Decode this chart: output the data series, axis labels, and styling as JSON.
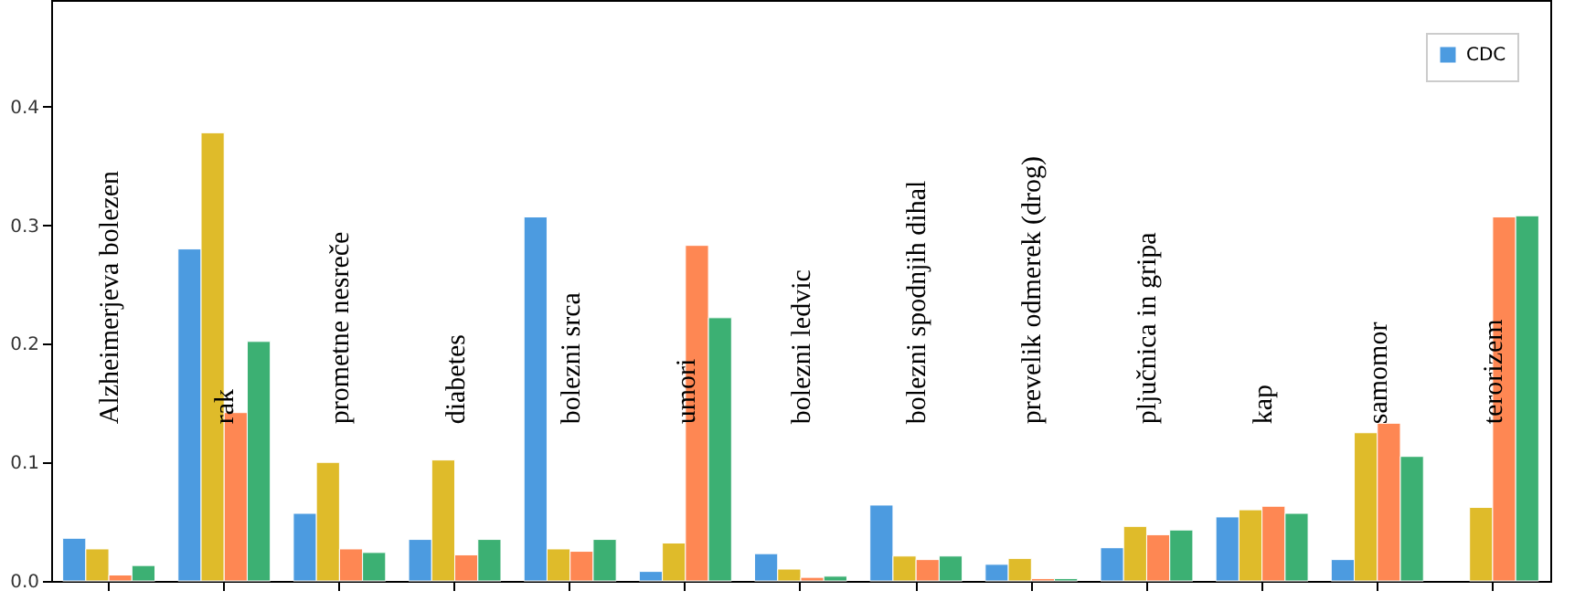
{
  "chart_data": {
    "type": "bar",
    "categories": [
      "Alzheimerjeva bolezen",
      "rak",
      "prometne nesreče",
      "diabetes",
      "bolezni srca",
      "umori",
      "bolezni ledvic",
      "bolezni spodnjih dihal",
      "prevelik odmerek (drog)",
      "pljučnica in gripa",
      "kap",
      "samomor",
      "terorizem"
    ],
    "series": [
      {
        "name": "CDC",
        "color": "#4c9be0",
        "values": [
          0.036,
          0.28,
          0.057,
          0.035,
          0.307,
          0.008,
          0.023,
          0.064,
          0.014,
          0.028,
          0.054,
          0.018,
          null
        ]
      },
      {
        "name": null,
        "color": "#dfbb2a",
        "values": [
          0.027,
          0.378,
          0.1,
          0.102,
          0.027,
          0.032,
          0.01,
          0.021,
          0.019,
          0.046,
          0.06,
          0.125,
          0.062
        ]
      },
      {
        "name": null,
        "color": "#fe8753",
        "values": [
          0.005,
          0.142,
          0.027,
          0.022,
          0.025,
          0.283,
          0.003,
          0.018,
          0.002,
          0.039,
          0.063,
          0.133,
          0.307
        ]
      },
      {
        "name": null,
        "color": "#3cb073",
        "values": [
          0.013,
          0.202,
          0.024,
          0.035,
          0.035,
          0.222,
          0.004,
          0.021,
          0.002,
          0.043,
          0.057,
          0.105,
          0.308
        ]
      }
    ],
    "ylim": [
      0,
      0.49
    ],
    "yticks": [
      {
        "value": 0,
        "label": "0.0"
      },
      0.1,
      0.2,
      0.3,
      0.4
    ],
    "tick_labels": "y",
    "grid": false,
    "legend": "top right"
  }
}
